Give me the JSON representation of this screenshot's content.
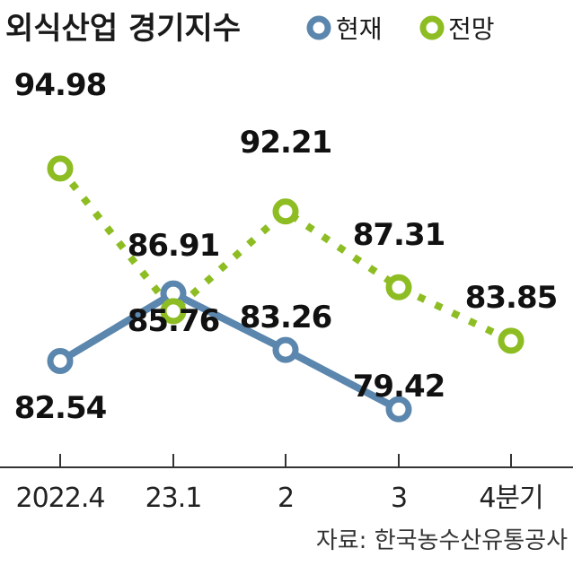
{
  "colors": {
    "current": "#5b86ad",
    "outlook": "#8dbd22",
    "axis": "#333333",
    "text": "#111111"
  },
  "chart_data": {
    "type": "line",
    "title": "외식산업 경기지수",
    "categories": [
      "2022.4",
      "23.1",
      "2",
      "3",
      "4분기"
    ],
    "series": [
      {
        "name": "현재",
        "style": "solid",
        "values": [
          82.54,
          86.91,
          83.26,
          79.42,
          null
        ]
      },
      {
        "name": "전망",
        "style": "dotted",
        "values": [
          94.98,
          85.76,
          92.21,
          87.31,
          83.85
        ]
      }
    ],
    "data_labels": {
      "현재": [
        "82.54",
        "86.91",
        "83.26",
        "79.42",
        null
      ],
      "전망": [
        "94.98",
        "85.76",
        "92.21",
        "87.31",
        "83.85"
      ]
    },
    "legend_position": "top-right",
    "grid": false,
    "ylim": [
      75,
      97
    ]
  },
  "source": "자료:  한국농수산유통공사"
}
